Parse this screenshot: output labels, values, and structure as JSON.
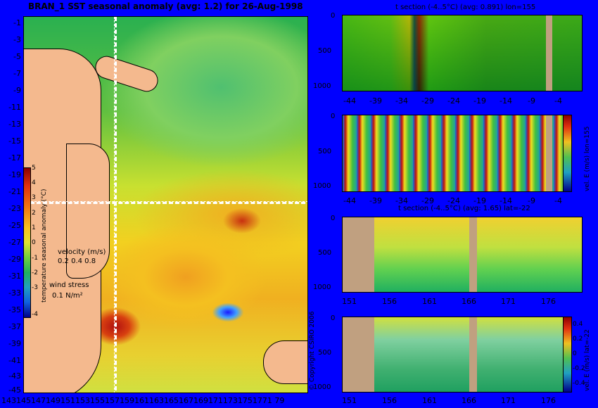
{
  "title": "BRAN_1 SST seasonal anomaly (avg: 1.2) for 26-Aug-1998",
  "map": {
    "y_ticks": [
      "-1",
      "-3",
      "-5",
      "-7",
      "-9",
      "-11",
      "-13",
      "-15",
      "-17",
      "-19",
      "-21",
      "-23",
      "-25",
      "-27",
      "-29",
      "-31",
      "-33",
      "-35",
      "-37",
      "-39",
      "-41",
      "-43",
      "-45"
    ],
    "x_ticks": "1431451471491511531551571591611631651671691711731751771 79",
    "colorbar_label": "temperature seasonal anomaly (°C)",
    "colorbar_ticks": [
      "5",
      "4",
      "3",
      "2",
      "1",
      "0",
      "-1",
      "-2",
      "-3",
      "-4"
    ],
    "velocity_label": "velocity (m/s)",
    "velocity_scale": "0.2 0.4 0.8",
    "wind_label": "wind stress",
    "wind_scale": "0.1 N/m²"
  },
  "panels": {
    "p1_title": "t section (-4..5°C) (avg: 0.891) lon=155",
    "p3_title": "t section (-4..5°C) (avg: 1.65) lat=-22",
    "p2_cb_label": "vel. E (m/s) lon=155",
    "p4_cb_label": "vel. E (m/s) lat=-22",
    "depth_ticks": [
      "0",
      "500",
      "1000"
    ],
    "lat_ticks": [
      "-44",
      "-39",
      "-34",
      "-29",
      "-24",
      "-19",
      "-14",
      "-9",
      "-4"
    ],
    "lon_ticks": [
      "151",
      "156",
      "161",
      "166",
      "171",
      "176"
    ],
    "vel_ticks": [
      "0.4",
      "0.2",
      "0",
      "-0.2",
      "-0.4"
    ]
  },
  "copyright": "© Copyright CSIRO 2006"
}
